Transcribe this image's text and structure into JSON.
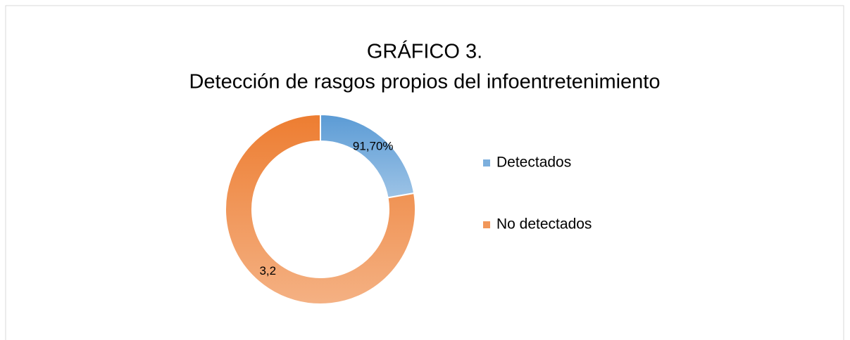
{
  "chart_data": {
    "type": "donut",
    "title": "GRÁFICO 3.",
    "subtitle": "Detección de rasgos propios del infoentretenimiento",
    "categories": [
      "Detectados",
      "No detectados"
    ],
    "values": [
      0.917,
      3.2
    ],
    "value_labels": [
      "91,70%",
      "3,2"
    ],
    "colors": [
      "#5b9bd5",
      "#ed7d31"
    ],
    "legend": "right"
  }
}
